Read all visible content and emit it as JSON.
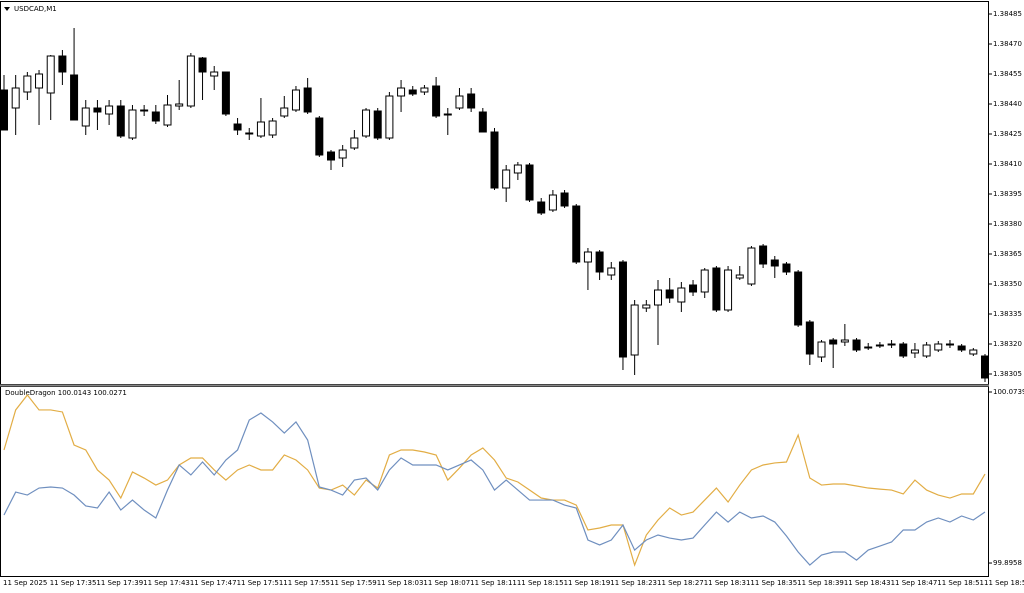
{
  "chart_data": [
    {
      "type": "candlestick",
      "title": "USDCAD,M1",
      "categories": [
        "11 Sep 2025",
        null,
        null,
        null,
        "11 Sep 17:35",
        null,
        null,
        null,
        "11 Sep 17:39",
        null,
        null,
        null,
        "11 Sep 17:43",
        null,
        null,
        null,
        "11 Sep 17:47",
        null,
        null,
        null,
        "11 Sep 17:51",
        null,
        null,
        null,
        "11 Sep 17:55",
        null,
        null,
        null,
        "11 Sep 17:59",
        null,
        null,
        null,
        "11 Sep 18:03",
        null,
        null,
        null,
        "11 Sep 18:07",
        null,
        null,
        null,
        "11 Sep 18:11",
        null,
        null,
        null,
        "11 Sep 18:15",
        null,
        null,
        null,
        "11 Sep 18:19",
        null,
        null,
        null,
        "11 Sep 18:23",
        null,
        null,
        null,
        "11 Sep 18:27",
        null,
        null,
        null,
        "11 Sep 18:31",
        null,
        null,
        null,
        "11 Sep 18:35",
        null,
        null,
        null,
        "11 Sep 18:39",
        null,
        null,
        null,
        "11 Sep 18:43",
        null,
        null,
        null,
        "11 Sep 18:47",
        null,
        null,
        null,
        "11 Sep 18:51",
        null,
        null,
        null,
        "11 Sep 18:55"
      ],
      "open": [
        1.38447,
        1.38438,
        1.38446,
        1.38448,
        1.384455,
        1.38464,
        1.384545,
        1.38429,
        1.38438,
        1.38435,
        1.38439,
        1.38423,
        1.38437,
        1.38436,
        1.384295,
        1.38439,
        1.38439,
        1.38463,
        1.38454,
        1.38456,
        1.3843,
        1.384255,
        1.38424,
        1.384245,
        1.38434,
        1.38437,
        1.38448,
        1.38433,
        1.38416,
        1.38413,
        1.38418,
        1.38424,
        1.384365,
        1.38423,
        1.38444,
        1.38447,
        1.38446,
        1.38449,
        1.38435,
        1.38438,
        1.38445,
        1.38436,
        1.38426,
        1.38398,
        1.384055,
        1.384095,
        1.38391,
        1.38387,
        1.383955,
        1.38389,
        1.38361,
        1.38366,
        1.383545,
        1.38361,
        1.383145,
        1.38338,
        1.383395,
        1.38347,
        1.38341,
        1.383495,
        1.38346,
        1.38358,
        1.38337,
        1.38353,
        1.3835,
        1.38369,
        1.38362,
        1.3836,
        1.38356,
        1.38331,
        1.383135,
        1.38322,
        1.38321,
        1.38322,
        1.383185,
        1.383195,
        1.3832,
        1.3832,
        1.383155,
        1.38314,
        1.38317,
        1.383195,
        1.38319,
        1.38315,
        1.38314
      ],
      "high": [
        1.384545,
        1.384545,
        1.38456,
        1.38457,
        1.384645,
        1.38467,
        1.38478,
        1.38442,
        1.38442,
        1.38442,
        1.38442,
        1.384395,
        1.384395,
        1.384395,
        1.384445,
        1.38452,
        1.384655,
        1.384635,
        1.38459,
        1.38456,
        1.38433,
        1.38428,
        1.38443,
        1.38433,
        1.38444,
        1.38449,
        1.38453,
        1.38434,
        1.38417,
        1.384195,
        1.38427,
        1.38438,
        1.38438,
        1.38446,
        1.38452,
        1.38449,
        1.384495,
        1.384535,
        1.38438,
        1.38448,
        1.38448,
        1.38438,
        1.38428,
        1.384095,
        1.38411,
        1.384105,
        1.38393,
        1.38397,
        1.38397,
        1.3839,
        1.38368,
        1.38367,
        1.38361,
        1.38362,
        1.38342,
        1.38342,
        1.38352,
        1.38353,
        1.38351,
        1.38352,
        1.38358,
        1.38359,
        1.38359,
        1.38359,
        1.38369,
        1.3837,
        1.38364,
        1.38361,
        1.38357,
        1.38332,
        1.38322,
        1.38323,
        1.3833,
        1.38323,
        1.383205,
        1.38321,
        1.38322,
        1.38321,
        1.383205,
        1.38321,
        1.383215,
        1.38322,
        1.3832,
        1.38318,
        1.38315
      ],
      "low": [
        1.38427,
        1.384245,
        1.38442,
        1.384295,
        1.38432,
        1.384495,
        1.38432,
        1.384245,
        1.38427,
        1.384295,
        1.38423,
        1.38422,
        1.38434,
        1.3843,
        1.384285,
        1.38437,
        1.38438,
        1.38442,
        1.38447,
        1.38434,
        1.384245,
        1.38422,
        1.38423,
        1.38423,
        1.38433,
        1.38436,
        1.38435,
        1.384135,
        1.38407,
        1.384085,
        1.38417,
        1.38423,
        1.38422,
        1.38422,
        1.38436,
        1.38444,
        1.384445,
        1.38433,
        1.384245,
        1.38437,
        1.38436,
        1.38426,
        1.38397,
        1.38391,
        1.38402,
        1.38391,
        1.383845,
        1.38386,
        1.38388,
        1.3836,
        1.38347,
        1.38352,
        1.38352,
        1.38307,
        1.383045,
        1.38336,
        1.383195,
        1.383405,
        1.38336,
        1.38344,
        1.38343,
        1.38336,
        1.38336,
        1.38352,
        1.38349,
        1.38358,
        1.38353,
        1.383545,
        1.383285,
        1.383095,
        1.38311,
        1.38308,
        1.38319,
        1.38316,
        1.38317,
        1.38318,
        1.38318,
        1.38313,
        1.38313,
        1.38313,
        1.38316,
        1.38318,
        1.38316,
        1.38314,
        1.38301
      ],
      "close": [
        1.38427,
        1.38448,
        1.38454,
        1.38455,
        1.38464,
        1.38456,
        1.38432,
        1.38438,
        1.38436,
        1.38439,
        1.38424,
        1.38437,
        1.38437,
        1.384315,
        1.384395,
        1.3844,
        1.38464,
        1.38456,
        1.38456,
        1.38435,
        1.38427,
        1.384255,
        1.38431,
        1.384315,
        1.38438,
        1.38447,
        1.38436,
        1.384145,
        1.38412,
        1.38417,
        1.38423,
        1.38437,
        1.38423,
        1.38444,
        1.38448,
        1.38445,
        1.38448,
        1.38434,
        1.38435,
        1.38444,
        1.38438,
        1.38426,
        1.38398,
        1.38407,
        1.384095,
        1.38392,
        1.383855,
        1.383945,
        1.38389,
        1.38361,
        1.38366,
        1.38356,
        1.38358,
        1.383135,
        1.383395,
        1.383395,
        1.38347,
        1.38343,
        1.38348,
        1.38346,
        1.38357,
        1.38337,
        1.38357,
        1.383545,
        1.38368,
        1.3836,
        1.38359,
        1.38356,
        1.383295,
        1.38315,
        1.38321,
        1.3832,
        1.38322,
        1.38317,
        1.383185,
        1.383195,
        1.3832,
        1.38314,
        1.38317,
        1.383195,
        1.3832,
        1.3832,
        1.38317,
        1.38317,
        1.38303
      ],
      "up_color": "#ffffff",
      "down_color": "#000000",
      "ylim": [
        1.383,
        1.38491
      ],
      "yticks": [
        1.38485,
        {
          "value": 1.3847,
          "label": "1.38470"
        },
        1.38455,
        {
          "value": 1.3844,
          "label": "1.38440"
        },
        1.38425,
        {
          "value": 1.3841,
          "label": "1.38410"
        },
        1.38395,
        {
          "value": 1.3838,
          "label": "1.38380"
        },
        1.38365,
        {
          "value": 1.3835,
          "label": "1.38350"
        },
        1.38335,
        {
          "value": 1.3832,
          "label": "1.38320"
        },
        1.38305
      ]
    },
    {
      "type": "line",
      "title": "DoubleDragon 100.0143 100.0271",
      "series": [
        {
          "color": "#e2ad45",
          "values": [
            100.0135,
            100.0552,
            100.0708,
            100.0552,
            100.0552,
            100.0531,
            100.0187,
            100.0135,
            99.9927,
            99.9822,
            99.9635,
            99.9906,
            99.9843,
            99.977,
            99.9822,
            99.9979,
            100.0052,
            100.0052,
            99.9927,
            99.9822,
            99.9927,
            99.9979,
            99.9927,
            99.9927,
            100.0083,
            100.0031,
            99.9927,
            99.9739,
            99.9718,
            99.977,
            99.9666,
            99.9822,
            99.9739,
            100.0083,
            100.0135,
            100.0135,
            100.0114,
            100.0083,
            99.9822,
            99.9947,
            100.0083,
            100.0156,
            100.0031,
            99.9843,
            99.9802,
            99.9718,
            99.9635,
            99.9614,
            99.9614,
            99.9562,
            99.9302,
            99.9323,
            99.9354,
            99.9354,
            99.8937,
            99.925,
            99.9406,
            99.9531,
            99.9458,
            99.9489,
            99.9614,
            99.9739,
            99.9593,
            99.977,
            99.9927,
            99.9979,
            100.0,
            100.001,
            100.0291,
            99.9843,
            99.977,
            99.9781,
            99.9781,
            99.976,
            99.9739,
            99.9728,
            99.9718,
            99.9677,
            99.9822,
            99.9718,
            99.9666,
            99.9635,
            99.9677,
            99.9677,
            99.9885
          ]
        },
        {
          "color": "#6f8fbf",
          "values": [
            99.9458,
            99.9697,
            99.9666,
            99.9739,
            99.975,
            99.9739,
            99.9666,
            99.9552,
            99.9531,
            99.9697,
            99.951,
            99.9614,
            99.951,
            99.9427,
            99.9718,
            99.9979,
            99.9875,
            100.001,
            99.9875,
            100.0031,
            100.0135,
            100.0447,
            100.052,
            100.0427,
            100.0312,
            100.0427,
            100.0239,
            99.975,
            99.9718,
            99.9666,
            99.9822,
            99.9843,
            99.9718,
            99.9927,
            100.0052,
            99.9979,
            99.9979,
            99.9979,
            99.9927,
            99.9979,
            100.0031,
            99.9927,
            99.9718,
            99.9822,
            99.9718,
            99.9614,
            99.9614,
            99.9614,
            99.9562,
            99.9531,
            99.9198,
            99.9146,
            99.9198,
            99.9354,
            99.9093,
            99.9198,
            99.925,
            99.9218,
            99.9198,
            99.9218,
            99.9354,
            99.9489,
            99.9385,
            99.9489,
            99.9427,
            99.9448,
            99.9385,
            99.9239,
            99.9073,
            99.8937,
            99.9041,
            99.9073,
            99.9073,
            99.8989,
            99.9093,
            99.9135,
            99.9177,
            99.9302,
            99.9302,
            99.9385,
            99.9427,
            99.9385,
            99.9448,
            99.9406,
            99.9489
          ]
        }
      ],
      "ylim": [
        99.8823,
        100.0791
      ],
      "yticks": [
        99.8958,
        100.0739
      ]
    }
  ]
}
